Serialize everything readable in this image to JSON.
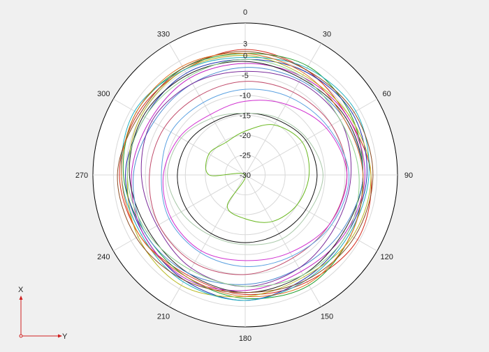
{
  "chart_data": {
    "type": "polar-line",
    "angular_unit": "degrees",
    "angle_zero": "top",
    "angle_direction": "clockwise",
    "angle_ticks": [
      0,
      30,
      60,
      90,
      120,
      150,
      180,
      210,
      240,
      270,
      300,
      330
    ],
    "angle_tick_labels": [
      "0",
      "30",
      "60",
      "90",
      "120",
      "150",
      "180",
      "210",
      "240",
      "270",
      "300",
      "330"
    ],
    "radial_ticks": [
      3,
      0,
      -5,
      -10,
      -15,
      -20,
      -25,
      -30
    ],
    "radial_tick_labels": [
      "3",
      "0",
      "-5",
      "-10",
      "-15",
      "-20",
      "-25",
      "-30"
    ],
    "rlim": [
      -30,
      5
    ],
    "grid": true,
    "legend": "none",
    "series": [
      {
        "color": "#d4281b",
        "values": [
          1.5,
          0.5,
          -0.5,
          1.5,
          2.5,
          1.0,
          0.0,
          -1.0,
          0.5,
          1.5,
          1.0,
          0.5
        ]
      },
      {
        "color": "#1f9d2a",
        "values": [
          0.5,
          1.5,
          0.5,
          -0.5,
          0.5,
          2.0,
          1.0,
          -0.5,
          -1.0,
          0.5,
          1.5,
          1.0
        ]
      },
      {
        "color": "#2030b0",
        "values": [
          -1.0,
          0.0,
          1.0,
          0.5,
          -0.5,
          0.0,
          1.5,
          0.5,
          -0.5,
          0.0,
          -1.0,
          -0.5
        ]
      },
      {
        "color": "#b8b820",
        "values": [
          0.0,
          -1.0,
          0.0,
          1.5,
          1.0,
          -0.5,
          0.5,
          2.0,
          1.0,
          -0.5,
          0.0,
          0.5
        ]
      },
      {
        "color": "#c020c0",
        "values": [
          -2.0,
          -1.5,
          -0.5,
          0.0,
          -1.0,
          -2.0,
          -1.0,
          0.0,
          -0.5,
          -1.5,
          -2.5,
          -2.0
        ]
      },
      {
        "color": "#20b0c0",
        "values": [
          -0.5,
          1.0,
          2.0,
          1.0,
          0.0,
          0.5,
          1.5,
          1.0,
          0.0,
          1.0,
          2.0,
          0.5
        ]
      },
      {
        "color": "#202020",
        "values": [
          -1.5,
          -2.0,
          -1.0,
          -0.5,
          -1.5,
          -1.0,
          -0.5,
          -1.5,
          -2.0,
          -1.0,
          -0.5,
          -1.0
        ]
      },
      {
        "color": "#8a4a20",
        "values": [
          1.0,
          0.5,
          1.5,
          2.0,
          1.5,
          0.5,
          -0.5,
          0.5,
          1.5,
          2.0,
          0.5,
          1.0
        ]
      },
      {
        "color": "#4a8ad0",
        "values": [
          -3.0,
          -2.5,
          -1.5,
          -0.5,
          -2.0,
          -3.0,
          -2.5,
          -1.5,
          -1.0,
          -2.0,
          -3.5,
          -3.5
        ]
      },
      {
        "color": "#e07020",
        "values": [
          0.5,
          -0.5,
          -1.5,
          -0.5,
          0.5,
          1.5,
          0.5,
          -0.5,
          0.5,
          1.0,
          1.5,
          1.5
        ]
      },
      {
        "color": "#7a2a9a",
        "values": [
          -4.0,
          -3.0,
          -2.5,
          -3.5,
          -4.0,
          -3.0,
          -2.0,
          -3.0,
          -4.5,
          -4.0,
          -3.0,
          -3.5
        ]
      },
      {
        "color": "#8ad08a",
        "values": [
          -1.0,
          -1.5,
          -2.5,
          -1.5,
          -0.5,
          -1.0,
          -2.0,
          -2.5,
          -1.5,
          -0.5,
          -1.0,
          -1.5
        ]
      },
      {
        "color": "#c04a6a",
        "values": [
          -6.5,
          -6.0,
          -5.0,
          -4.5,
          -5.5,
          -6.0,
          -5.0,
          -4.5,
          -5.0,
          -6.0,
          -6.5,
          -7.0
        ]
      },
      {
        "color": "#d030d0",
        "values": [
          -11.5,
          -9.5,
          -6.5,
          -4.5,
          -5.5,
          -7.5,
          -8.5,
          -8.0,
          -8.5,
          -9.5,
          -11.0,
          -12.5
        ]
      },
      {
        "color": "#5aa0e0",
        "values": [
          -8.5,
          -7.5,
          -6.0,
          -4.0,
          -5.0,
          -6.5,
          -7.0,
          -7.5,
          -8.0,
          -9.0,
          -8.5,
          -9.0
        ]
      },
      {
        "color": "#101010",
        "values": [
          -14.5,
          -14.0,
          -12.5,
          -12.0,
          -12.5,
          -13.0,
          -13.0,
          -13.0,
          -13.0,
          -13.0,
          -13.5,
          -14.5
        ]
      },
      {
        "color": "#a8c8a8",
        "values": [
          -14.5,
          -13.5,
          -12.0,
          -10.5,
          -11.5,
          -11.5,
          -12.5,
          -12.5,
          -11.5,
          -10.5,
          -11.5,
          -13.5
        ]
      },
      {
        "color": "#6ab820",
        "values": [
          -19.0,
          -15.5,
          -13.5,
          -14.0,
          -15.0,
          -16.5,
          -19.0,
          -21.0,
          -30.0,
          -21.0,
          -19.5,
          -20.5
        ]
      }
    ]
  },
  "axis_indicator": {
    "x_label": "X",
    "y_label": "Y"
  }
}
